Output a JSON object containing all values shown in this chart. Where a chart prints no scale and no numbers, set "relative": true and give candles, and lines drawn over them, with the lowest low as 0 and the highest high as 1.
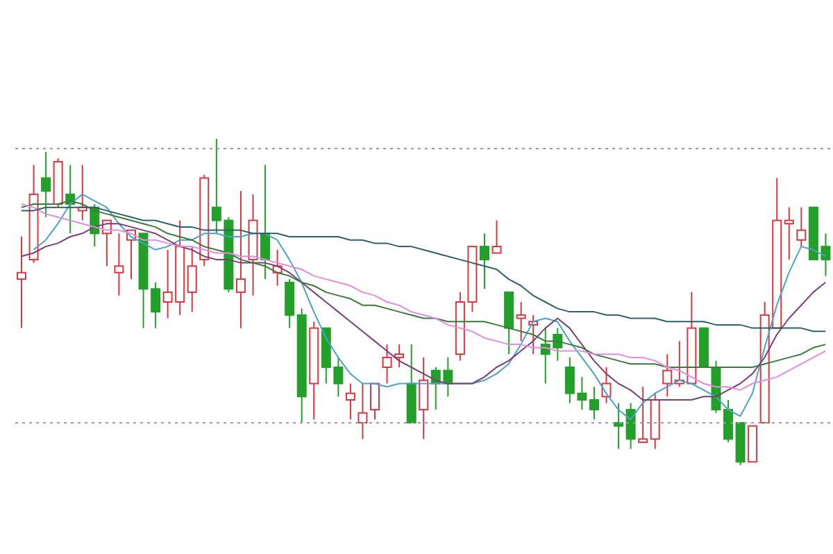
{
  "chart_data": {
    "type": "candlestick",
    "relative": true,
    "tick_labels": false,
    "legend": false,
    "marker": "none",
    "categories": [
      null,
      null,
      null,
      null,
      null,
      null,
      null,
      null,
      null,
      null,
      null,
      null,
      null,
      null,
      null,
      null,
      null,
      null,
      null,
      null,
      null,
      null,
      null,
      null,
      null,
      null,
      null,
      null,
      null,
      null,
      null,
      null,
      null,
      null,
      null,
      null,
      null,
      null,
      null,
      null,
      null,
      null,
      null,
      null,
      null,
      null,
      null,
      null,
      null,
      null,
      null,
      null,
      null,
      null,
      null,
      null,
      null,
      null,
      null,
      null,
      null,
      null,
      null,
      null,
      null,
      null,
      null
    ],
    "ohlc": [
      [
        0.57,
        0.7,
        0.42,
        0.59
      ],
      [
        0.63,
        0.92,
        0.62,
        0.83
      ],
      [
        0.88,
        0.96,
        0.76,
        0.84
      ],
      [
        0.8,
        0.94,
        0.79,
        0.93
      ],
      [
        0.83,
        0.92,
        0.71,
        0.8
      ],
      [
        0.78,
        0.92,
        0.75,
        0.79
      ],
      [
        0.79,
        0.8,
        0.67,
        0.71
      ],
      [
        0.71,
        0.75,
        0.61,
        0.75
      ],
      [
        0.59,
        0.71,
        0.52,
        0.61
      ],
      [
        0.69,
        0.72,
        0.57,
        0.72
      ],
      [
        0.71,
        0.71,
        0.42,
        0.54
      ],
      [
        0.54,
        0.56,
        0.42,
        0.47
      ],
      [
        0.5,
        0.66,
        0.45,
        0.53
      ],
      [
        0.5,
        0.75,
        0.46,
        0.67
      ],
      [
        0.53,
        0.67,
        0.47,
        0.61
      ],
      [
        0.63,
        0.89,
        0.61,
        0.88
      ],
      [
        0.79,
        1.0,
        0.71,
        0.75
      ],
      [
        0.75,
        0.76,
        0.53,
        0.54
      ],
      [
        0.53,
        0.84,
        0.42,
        0.57
      ],
      [
        0.63,
        0.83,
        0.52,
        0.75
      ],
      [
        0.71,
        0.92,
        0.57,
        0.63
      ],
      [
        0.59,
        0.66,
        0.55,
        0.61
      ],
      [
        0.56,
        0.57,
        0.42,
        0.46
      ],
      [
        0.46,
        0.48,
        0.13,
        0.21
      ],
      [
        0.25,
        0.44,
        0.14,
        0.42
      ],
      [
        0.42,
        0.42,
        0.25,
        0.3
      ],
      [
        0.3,
        0.33,
        0.21,
        0.25
      ],
      [
        0.2,
        0.25,
        0.14,
        0.22
      ],
      [
        0.13,
        0.25,
        0.08,
        0.16
      ],
      [
        0.17,
        0.25,
        0.14,
        0.25
      ],
      [
        0.3,
        0.37,
        0.25,
        0.33
      ],
      [
        0.33,
        0.37,
        0.3,
        0.34
      ],
      [
        0.25,
        0.37,
        0.13,
        0.13
      ],
      [
        0.17,
        0.33,
        0.08,
        0.26
      ],
      [
        0.29,
        0.3,
        0.17,
        0.25
      ],
      [
        0.29,
        0.33,
        0.21,
        0.25
      ],
      [
        0.34,
        0.53,
        0.32,
        0.5
      ],
      [
        0.5,
        0.67,
        0.47,
        0.67
      ],
      [
        0.67,
        0.71,
        0.54,
        0.63
      ],
      [
        0.65,
        0.75,
        0.65,
        0.67
      ],
      [
        0.53,
        0.53,
        0.34,
        0.42
      ],
      [
        0.45,
        0.5,
        0.38,
        0.46
      ],
      [
        0.43,
        0.46,
        0.34,
        0.44
      ],
      [
        0.37,
        0.42,
        0.25,
        0.34
      ],
      [
        0.4,
        0.42,
        0.32,
        0.36
      ],
      [
        0.3,
        0.33,
        0.19,
        0.22
      ],
      [
        0.22,
        0.27,
        0.17,
        0.2
      ],
      [
        0.2,
        0.24,
        0.14,
        0.17
      ],
      [
        0.21,
        0.3,
        0.19,
        0.25
      ],
      [
        0.13,
        0.19,
        0.05,
        0.12
      ],
      [
        0.17,
        0.19,
        0.05,
        0.08
      ],
      [
        0.07,
        0.24,
        0.07,
        0.08
      ],
      [
        0.08,
        0.22,
        0.05,
        0.2
      ],
      [
        0.25,
        0.34,
        0.21,
        0.29
      ],
      [
        0.25,
        0.38,
        0.24,
        0.26
      ],
      [
        0.25,
        0.53,
        0.25,
        0.42
      ],
      [
        0.42,
        0.42,
        0.3,
        0.3
      ],
      [
        0.3,
        0.32,
        0.16,
        0.17
      ],
      [
        0.17,
        0.2,
        0.07,
        0.08
      ],
      [
        0.13,
        0.13,
        0.0,
        0.01
      ],
      [
        0.01,
        0.12,
        0.01,
        0.12
      ],
      [
        0.13,
        0.5,
        0.13,
        0.46
      ],
      [
        0.42,
        0.88,
        0.42,
        0.75
      ],
      [
        0.74,
        0.79,
        0.63,
        0.75
      ],
      [
        0.69,
        0.79,
        0.67,
        0.72
      ],
      [
        0.79,
        0.79,
        0.63,
        0.63
      ],
      [
        0.67,
        0.71,
        0.58,
        0.63
      ]
    ],
    "colors": [
      "#d9363e",
      "#d9363e",
      "#22a02a",
      "#d9363e",
      "#22a02a",
      "#d9363e",
      "#22a02a",
      "#d9363e",
      "#d9363e",
      "#d9363e",
      "#22a02a",
      "#22a02a",
      "#d9363e",
      "#d9363e",
      "#d9363e",
      "#d9363e",
      "#22a02a",
      "#22a02a",
      "#d9363e",
      "#d9363e",
      "#22a02a",
      "#d9363e",
      "#22a02a",
      "#22a02a",
      "#d9363e",
      "#22a02a",
      "#22a02a",
      "#d9363e",
      "#d9363e",
      "#d9363e",
      "#d9363e",
      "#d9363e",
      "#22a02a",
      "#d9363e",
      "#22a02a",
      "#22a02a",
      "#d9363e",
      "#d9363e",
      "#22a02a",
      "#d9363e",
      "#22a02a",
      "#d9363e",
      "#d9363e",
      "#22a02a",
      "#22a02a",
      "#22a02a",
      "#22a02a",
      "#22a02a",
      "#d9363e",
      "#22a02a",
      "#22a02a",
      "#d9363e",
      "#d9363e",
      "#d9363e",
      "#d9363e",
      "#d9363e",
      "#22a02a",
      "#22a02a",
      "#22a02a",
      "#22a02a",
      "#d9363e",
      "#d9363e",
      "#d9363e",
      "#d9363e",
      "#d9363e",
      "#22a02a",
      "#22a02a"
    ],
    "series": [
      {
        "type": "line",
        "color": "#4aa3c8",
        "values": [
          null,
          0.66,
          0.69,
          0.74,
          0.8,
          0.83,
          0.81,
          0.79,
          0.74,
          0.7,
          0.68,
          0.66,
          0.67,
          0.69,
          0.69,
          0.71,
          0.71,
          0.7,
          0.7,
          0.71,
          0.71,
          0.69,
          0.63,
          0.56,
          0.47,
          0.39,
          0.33,
          0.28,
          0.25,
          0.25,
          0.24,
          0.25,
          0.25,
          0.25,
          0.25,
          0.25,
          0.25,
          0.25,
          0.26,
          0.28,
          0.31,
          0.37,
          0.44,
          0.45,
          0.44,
          0.38,
          0.33,
          0.28,
          0.22,
          0.17,
          0.14,
          0.19,
          0.22,
          0.24,
          0.26,
          0.25,
          0.23,
          0.21,
          0.17,
          0.15,
          0.22,
          0.36,
          0.49,
          0.59,
          0.67,
          0.66,
          0.64
        ]
      },
      {
        "type": "line",
        "color": "#7a3f7a",
        "values": [
          0.64,
          0.65,
          0.67,
          0.68,
          0.7,
          0.71,
          0.73,
          0.74,
          0.74,
          0.73,
          0.72,
          0.71,
          0.69,
          0.67,
          0.66,
          0.64,
          0.63,
          0.63,
          0.62,
          0.62,
          0.62,
          0.61,
          0.59,
          0.56,
          0.53,
          0.5,
          0.47,
          0.44,
          0.41,
          0.38,
          0.35,
          0.32,
          0.3,
          0.28,
          0.26,
          0.25,
          0.25,
          0.25,
          0.27,
          0.3,
          0.32,
          0.35,
          0.38,
          0.42,
          0.45,
          0.42,
          0.37,
          0.32,
          0.28,
          0.25,
          0.23,
          0.2,
          0.2,
          0.2,
          0.2,
          0.2,
          0.21,
          0.21,
          0.23,
          0.25,
          0.28,
          0.33,
          0.4,
          0.45,
          0.49,
          0.53,
          0.56
        ]
      },
      {
        "type": "line",
        "color": "#3a7a3a",
        "values": [
          0.79,
          0.8,
          0.8,
          0.8,
          0.81,
          0.8,
          0.78,
          0.77,
          0.76,
          0.75,
          0.74,
          0.73,
          0.71,
          0.7,
          0.69,
          0.67,
          0.66,
          0.65,
          0.63,
          0.62,
          0.61,
          0.59,
          0.58,
          0.56,
          0.55,
          0.53,
          0.52,
          0.51,
          0.49,
          0.49,
          0.48,
          0.47,
          0.46,
          0.45,
          0.45,
          0.44,
          0.44,
          0.44,
          0.44,
          0.43,
          0.42,
          0.41,
          0.4,
          0.38,
          0.38,
          0.37,
          0.36,
          0.34,
          0.33,
          0.32,
          0.31,
          0.31,
          0.31,
          0.3,
          0.3,
          0.3,
          0.3,
          0.3,
          0.3,
          0.3,
          0.3,
          0.31,
          0.32,
          0.33,
          0.34,
          0.36,
          0.37
        ]
      },
      {
        "type": "line",
        "color": "#e68ae0",
        "values": [
          0.8,
          0.79,
          0.77,
          0.76,
          0.75,
          0.74,
          0.73,
          0.72,
          0.72,
          0.71,
          0.69,
          0.69,
          0.68,
          0.67,
          0.67,
          0.66,
          0.65,
          0.65,
          0.64,
          0.64,
          0.63,
          0.62,
          0.61,
          0.6,
          0.58,
          0.57,
          0.56,
          0.55,
          0.53,
          0.52,
          0.5,
          0.49,
          0.47,
          0.46,
          0.45,
          0.43,
          0.42,
          0.41,
          0.39,
          0.38,
          0.37,
          0.37,
          0.36,
          0.36,
          0.35,
          0.35,
          0.35,
          0.34,
          0.34,
          0.34,
          0.33,
          0.33,
          0.32,
          0.3,
          0.29,
          0.27,
          0.25,
          0.24,
          0.24,
          0.23,
          0.25,
          0.26,
          0.27,
          0.29,
          0.31,
          0.33,
          0.35
        ]
      },
      {
        "type": "line",
        "color": "#2f5f6a",
        "values": [
          0.78,
          0.78,
          0.79,
          0.79,
          0.79,
          0.79,
          0.79,
          0.78,
          0.77,
          0.76,
          0.75,
          0.75,
          0.74,
          0.73,
          0.73,
          0.72,
          0.72,
          0.72,
          0.72,
          0.71,
          0.71,
          0.71,
          0.7,
          0.7,
          0.7,
          0.7,
          0.7,
          0.69,
          0.69,
          0.68,
          0.68,
          0.67,
          0.67,
          0.66,
          0.65,
          0.64,
          0.63,
          0.62,
          0.61,
          0.6,
          0.57,
          0.55,
          0.52,
          0.5,
          0.48,
          0.47,
          0.47,
          0.47,
          0.46,
          0.46,
          0.45,
          0.45,
          0.45,
          0.44,
          0.44,
          0.44,
          0.44,
          0.43,
          0.43,
          0.43,
          0.42,
          0.42,
          0.42,
          0.42,
          0.42,
          0.41,
          0.41
        ]
      }
    ],
    "ref_lines": [
      {
        "axis": "y",
        "value": 0.97,
        "color": "#9a9a9a",
        "line_style": "dotted"
      },
      {
        "axis": "y",
        "value": 0.13,
        "color": "#9a9a9a",
        "line_style": "dotted"
      }
    ]
  }
}
